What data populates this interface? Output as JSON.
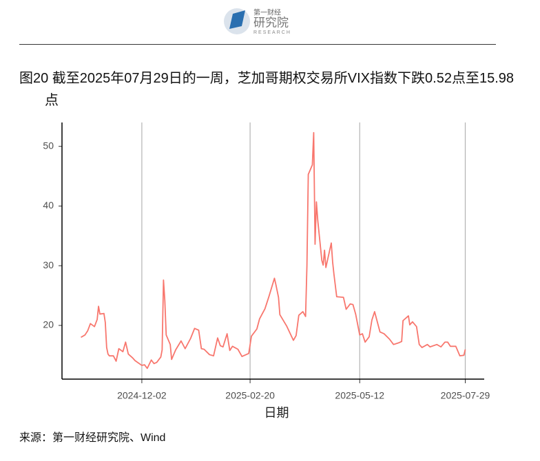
{
  "header": {
    "brand": "第一财经",
    "institute": "研究院",
    "research": "RESEARCH"
  },
  "source": "来源：第一财经研究院、Wind",
  "chart_data": {
    "type": "line",
    "title": "图20  截至2025年07月29日的一周，芝加哥期权交易所VIX指数下跌0.52点至15.98点",
    "x_label": "日期",
    "xlim": [
      "2024-10-04",
      "2025-08-12"
    ],
    "xticks": [
      "2024-12-02",
      "2025-02-20",
      "2025-05-12",
      "2025-07-29"
    ],
    "ylim": [
      11,
      54
    ],
    "yticks": [
      20,
      30,
      40,
      50
    ],
    "grid": "x",
    "x": [
      "2024-10-18",
      "2024-10-21",
      "2024-10-23",
      "2024-10-25",
      "2024-10-28",
      "2024-10-30",
      "2024-10-31",
      "2024-11-01",
      "2024-11-04",
      "2024-11-05",
      "2024-11-06",
      "2024-11-07",
      "2024-11-08",
      "2024-11-11",
      "2024-11-13",
      "2024-11-15",
      "2024-11-18",
      "2024-11-20",
      "2024-11-22",
      "2024-11-25",
      "2024-11-27",
      "2024-12-02",
      "2024-12-04",
      "2024-12-06",
      "2024-12-09",
      "2024-12-11",
      "2024-12-13",
      "2024-12-16",
      "2024-12-17",
      "2024-12-18",
      "2024-12-19",
      "2024-12-20",
      "2024-12-23",
      "2024-12-24",
      "2024-12-27",
      "2024-12-31",
      "2025-01-03",
      "2025-01-07",
      "2025-01-10",
      "2025-01-13",
      "2025-01-15",
      "2025-01-17",
      "2025-01-21",
      "2025-01-24",
      "2025-01-27",
      "2025-01-29",
      "2025-01-31",
      "2025-02-03",
      "2025-02-05",
      "2025-02-07",
      "2025-02-11",
      "2025-02-14",
      "2025-02-19",
      "2025-02-21",
      "2025-02-25",
      "2025-02-27",
      "2025-03-03",
      "2025-03-04",
      "2025-03-06",
      "2025-03-10",
      "2025-03-11",
      "2025-03-13",
      "2025-03-14",
      "2025-03-19",
      "2025-03-24",
      "2025-03-26",
      "2025-03-28",
      "2025-03-31",
      "2025-04-02",
      "2025-04-03",
      "2025-04-04",
      "2025-04-07",
      "2025-04-08",
      "2025-04-09",
      "2025-04-10",
      "2025-04-11",
      "2025-04-14",
      "2025-04-15",
      "2025-04-16",
      "2025-04-17",
      "2025-04-21",
      "2025-04-22",
      "2025-04-23",
      "2025-04-25",
      "2025-04-30",
      "2025-05-02",
      "2025-05-05",
      "2025-05-07",
      "2025-05-09",
      "2025-05-12",
      "2025-05-14",
      "2025-05-16",
      "2025-05-19",
      "2025-05-21",
      "2025-05-23",
      "2025-05-27",
      "2025-05-30",
      "2025-06-03",
      "2025-06-06",
      "2025-06-10",
      "2025-06-12",
      "2025-06-13",
      "2025-06-17",
      "2025-06-18",
      "2025-06-20",
      "2025-06-23",
      "2025-06-25",
      "2025-06-27",
      "2025-07-01",
      "2025-07-03",
      "2025-07-08",
      "2025-07-11",
      "2025-07-14",
      "2025-07-16",
      "2025-07-18",
      "2025-07-22",
      "2025-07-25",
      "2025-07-28",
      "2025-07-29"
    ],
    "series": [
      {
        "name": "VIX",
        "color": "#F8766D",
        "values": [
          18.0,
          18.4,
          19.1,
          20.3,
          19.8,
          21.0,
          23.2,
          21.9,
          22.0,
          20.5,
          16.3,
          15.2,
          14.9,
          14.9,
          14.0,
          16.1,
          15.6,
          17.2,
          15.2,
          14.6,
          14.1,
          13.3,
          13.4,
          12.8,
          14.2,
          13.6,
          13.8,
          14.7,
          15.9,
          27.6,
          24.1,
          18.4,
          16.8,
          14.3,
          15.9,
          17.4,
          16.1,
          17.8,
          19.5,
          19.2,
          16.1,
          16.0,
          15.1,
          14.9,
          17.9,
          16.6,
          16.4,
          18.6,
          15.8,
          16.5,
          16.0,
          14.8,
          15.3,
          18.2,
          19.4,
          21.1,
          22.8,
          23.5,
          24.9,
          27.9,
          26.9,
          24.7,
          21.8,
          19.9,
          17.5,
          18.3,
          21.7,
          22.3,
          21.5,
          30.0,
          45.3,
          46.9,
          52.3,
          33.6,
          40.7,
          37.6,
          30.9,
          30.1,
          32.6,
          29.7,
          33.8,
          30.6,
          28.5,
          24.8,
          24.7,
          22.7,
          23.6,
          23.5,
          21.9,
          18.4,
          18.6,
          17.2,
          18.1,
          20.9,
          22.3,
          18.9,
          18.6,
          17.7,
          16.8,
          17.1,
          17.3,
          20.8,
          21.6,
          20.1,
          20.6,
          19.8,
          16.8,
          16.3,
          16.8,
          16.4,
          16.8,
          16.4,
          17.2,
          17.2,
          16.5,
          16.5,
          14.9,
          15.0,
          15.98
        ]
      }
    ]
  }
}
